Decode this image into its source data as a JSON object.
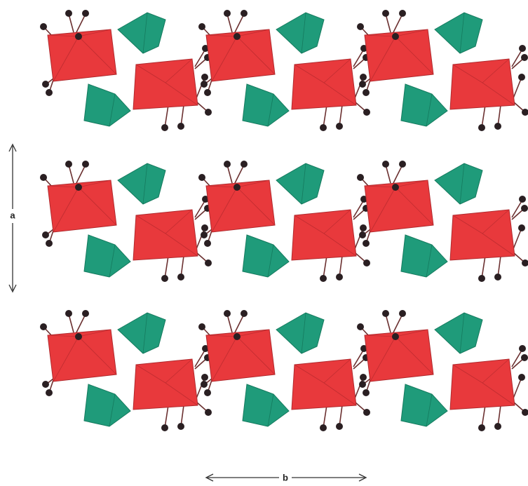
{
  "axes": {
    "a": "a",
    "b": "b"
  }
}
